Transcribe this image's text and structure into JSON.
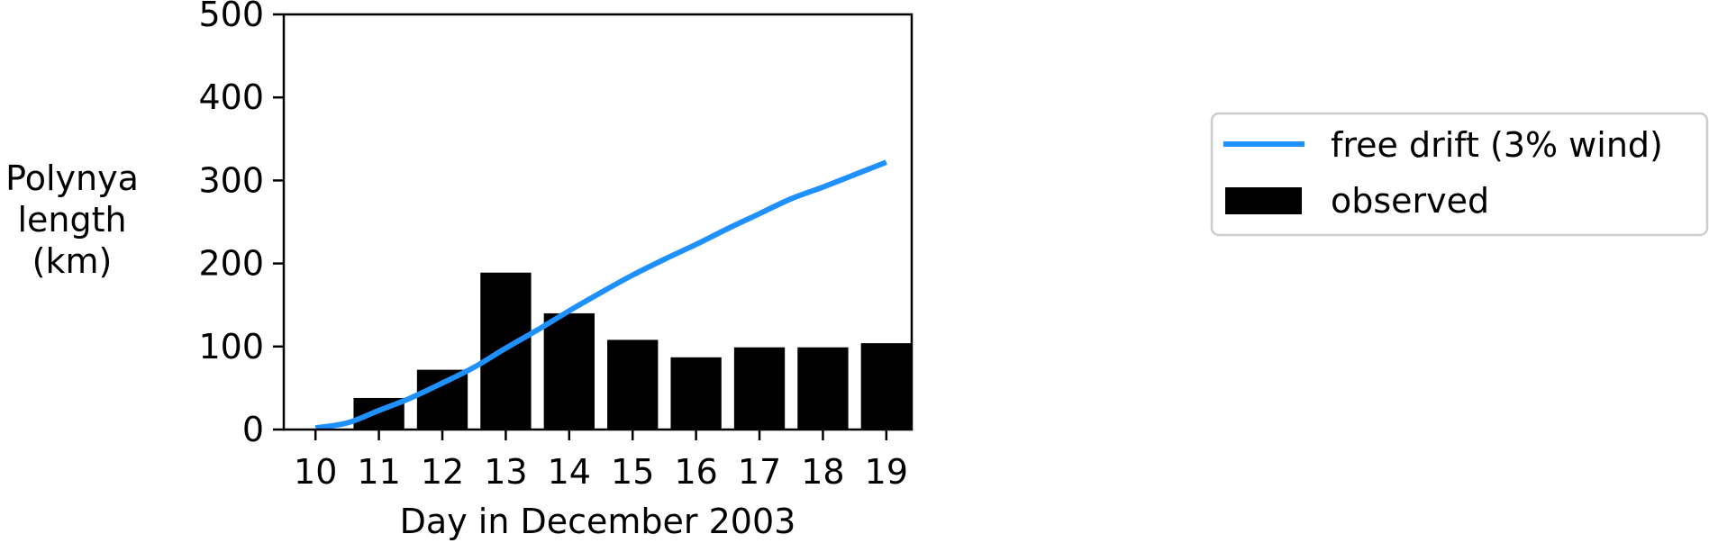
{
  "chart_data": {
    "type": "bar",
    "xlabel": "Day in December 2003",
    "ylabel_lines": [
      "Polynya",
      "length",
      "(km)"
    ],
    "xlim": [
      9.5,
      19.4
    ],
    "ylim": [
      0,
      500
    ],
    "xticks": [
      10,
      11,
      12,
      13,
      14,
      15,
      16,
      17,
      18,
      19
    ],
    "yticks": [
      0,
      100,
      200,
      300,
      400,
      500
    ],
    "grid": false,
    "legend_position": "right",
    "series": [
      {
        "name": "free drift (3% wind)",
        "type": "line",
        "color": "#1e90ff",
        "x": [
          10,
          10.5,
          11,
          11.5,
          12,
          12.5,
          13,
          13.5,
          14,
          14.5,
          15,
          15.5,
          16,
          16.5,
          17,
          17.5,
          18,
          18.5,
          19
        ],
        "y": [
          2,
          8,
          23,
          38,
          56,
          75,
          98,
          120,
          143,
          165,
          186,
          205,
          223,
          242,
          260,
          278,
          292,
          307,
          322
        ]
      },
      {
        "name": "observed",
        "type": "bar",
        "color": "#000000",
        "x": [
          11,
          12,
          13,
          14,
          15,
          16,
          17,
          18,
          19
        ],
        "y": [
          38,
          72,
          189,
          140,
          108,
          87,
          99,
          99,
          104
        ]
      }
    ]
  }
}
